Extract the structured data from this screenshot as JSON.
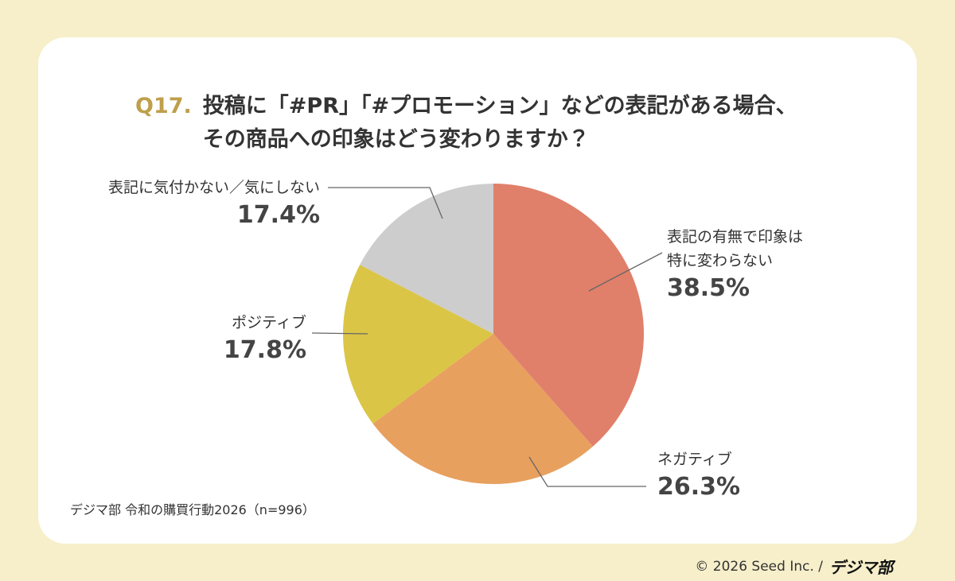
{
  "chart_data": {
    "type": "pie",
    "question_number": "Q17.",
    "title": "投稿に「#PR」「#プロモーション」などの表記がある場合、\nその商品への印象はどう変わりますか？",
    "categories": [
      "表記の有無で印象は\n特に変わらない",
      "ネガティブ",
      "ポジティブ",
      "表記に気付かない／気にしない"
    ],
    "values": [
      38.5,
      26.3,
      17.8,
      17.4
    ],
    "value_labels": [
      "38.5%",
      "26.3%",
      "17.8%",
      "17.4%"
    ],
    "colors": [
      "#e0806a",
      "#e8a05f",
      "#dbc546",
      "#cdcdcd"
    ],
    "source": "デジマ部 令和の購買行動2026（n=996）"
  },
  "footer": {
    "copyright": "© 2026 Seed Inc. /",
    "logo": "デジマ部"
  }
}
